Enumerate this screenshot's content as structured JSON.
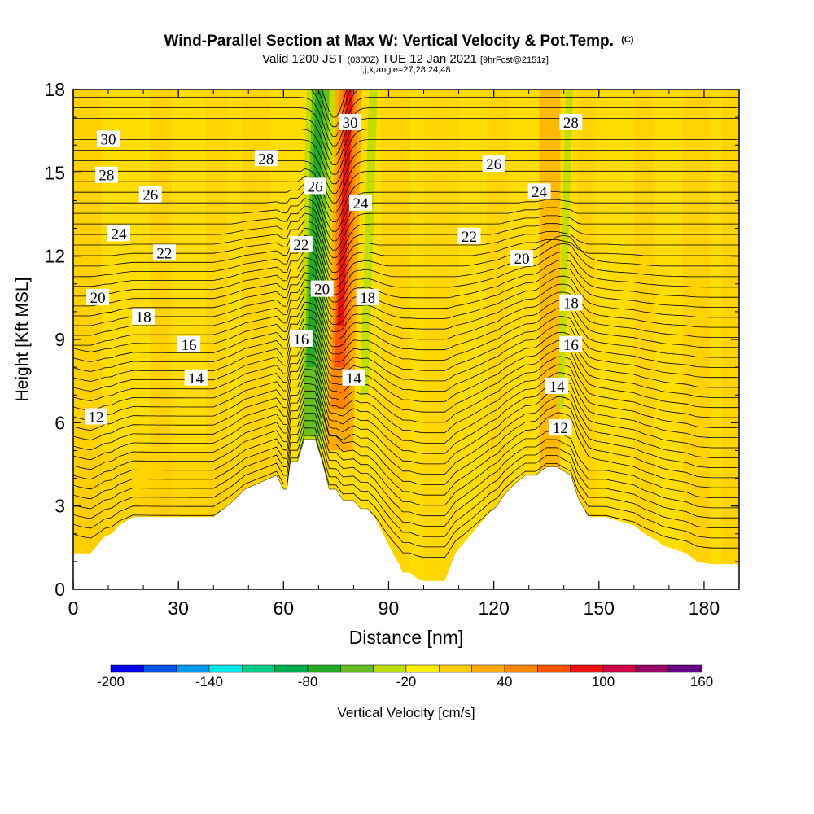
{
  "title": {
    "main": "Wind-Parallel Section at Max W: Vertical Velocity & Pot.Temp.",
    "copyright": "(C)",
    "valid_prefix": "Valid 1200 JST",
    "valid_zulu": "(0300Z)",
    "valid_date": "TUE 12 Jan 2021",
    "forecast": "[9hrFcst@2151z]",
    "indices": "i,j,k,angle=27,28,24,48"
  },
  "chart_data": {
    "type": "heatmap",
    "xlabel": "Distance [nm]",
    "ylabel": "Height [Kft MSL]",
    "xlim": [
      0,
      190
    ],
    "ylim": [
      0,
      18
    ],
    "xticks": [
      0,
      30,
      60,
      90,
      120,
      150,
      180
    ],
    "yticks": [
      0,
      3,
      6,
      9,
      12,
      15,
      18
    ],
    "grid": false,
    "shaded_field": "Vertical Velocity",
    "colorbar": {
      "label": "Vertical Velocity [cm/s]",
      "placement": "bottom",
      "ticks": [
        -200,
        -140,
        -80,
        -20,
        40,
        100,
        160
      ],
      "levels": [
        -200,
        -180,
        -160,
        -140,
        -120,
        -100,
        -80,
        -60,
        -40,
        -20,
        0,
        20,
        40,
        60,
        80,
        100,
        120,
        140,
        160
      ],
      "colors": [
        "#0000ee",
        "#0055ee",
        "#0099ee",
        "#00e5e5",
        "#00cc88",
        "#00b050",
        "#22aa22",
        "#66bb22",
        "#bbdd00",
        "#ffee00",
        "#ffcc00",
        "#ffaa00",
        "#ff8800",
        "#ff5500",
        "#ee1111",
        "#cc0044",
        "#990066",
        "#660088"
      ]
    },
    "contour_field": "Potential Temperature",
    "contour_labels": [
      {
        "text": "30",
        "x": 10,
        "y": 16.2
      },
      {
        "text": "28",
        "x": 9.5,
        "y": 14.9
      },
      {
        "text": "26",
        "x": 22,
        "y": 14.2
      },
      {
        "text": "24",
        "x": 13,
        "y": 12.8
      },
      {
        "text": "22",
        "x": 26,
        "y": 12.1
      },
      {
        "text": "20",
        "x": 7,
        "y": 10.5
      },
      {
        "text": "18",
        "x": 20,
        "y": 9.8
      },
      {
        "text": "16",
        "x": 33,
        "y": 8.8
      },
      {
        "text": "14",
        "x": 35,
        "y": 7.6
      },
      {
        "text": "12",
        "x": 6.5,
        "y": 6.2
      },
      {
        "text": "28",
        "x": 55,
        "y": 15.5
      },
      {
        "text": "26",
        "x": 69,
        "y": 14.5
      },
      {
        "text": "22",
        "x": 65,
        "y": 12.4
      },
      {
        "text": "20",
        "x": 71,
        "y": 10.8
      },
      {
        "text": "16",
        "x": 65,
        "y": 9.0
      },
      {
        "text": "30",
        "x": 79,
        "y": 16.8
      },
      {
        "text": "24",
        "x": 82,
        "y": 13.9
      },
      {
        "text": "18",
        "x": 84,
        "y": 10.5
      },
      {
        "text": "14",
        "x": 80,
        "y": 7.6
      },
      {
        "text": "26",
        "x": 120,
        "y": 15.3
      },
      {
        "text": "22",
        "x": 113,
        "y": 12.7
      },
      {
        "text": "24",
        "x": 133,
        "y": 14.3
      },
      {
        "text": "20",
        "x": 128,
        "y": 11.9
      },
      {
        "text": "28",
        "x": 142,
        "y": 16.8
      },
      {
        "text": "18",
        "x": 142,
        "y": 10.3
      },
      {
        "text": "16",
        "x": 142,
        "y": 8.8
      },
      {
        "text": "14",
        "x": 138,
        "y": 7.3
      },
      {
        "text": "12",
        "x": 139,
        "y": 5.8
      }
    ],
    "terrain_height": {
      "x": [
        0,
        5,
        7,
        9,
        11,
        13,
        17,
        20,
        40,
        45,
        49,
        58,
        60,
        61,
        62,
        64,
        66,
        69,
        71,
        73,
        75,
        77,
        79,
        80,
        82,
        84,
        86,
        88,
        90,
        92,
        93,
        94,
        96,
        98,
        100,
        103,
        106,
        109,
        111,
        113,
        115,
        117,
        119,
        121,
        123,
        126,
        129,
        132,
        135,
        136,
        138,
        142,
        144,
        147,
        150,
        152,
        160,
        163,
        166,
        168,
        170,
        175,
        178,
        182,
        185,
        190
      ],
      "y": [
        1.3,
        1.3,
        1.6,
        1.9,
        2.0,
        2.3,
        2.6,
        2.6,
        2.6,
        3.1,
        3.6,
        4.1,
        3.6,
        3.6,
        4.6,
        4.6,
        5.4,
        5.4,
        4.6,
        3.6,
        3.6,
        3.2,
        3.2,
        3.2,
        2.9,
        2.9,
        2.6,
        2.1,
        1.6,
        1.1,
        0.9,
        0.6,
        0.6,
        0.4,
        0.3,
        0.3,
        0.3,
        1.3,
        1.6,
        1.9,
        2.2,
        2.5,
        2.8,
        3.0,
        3.4,
        3.8,
        4.1,
        4.1,
        4.4,
        4.4,
        4.4,
        4.1,
        3.3,
        2.6,
        2.6,
        2.6,
        2.3,
        2.0,
        1.8,
        1.6,
        1.5,
        1.3,
        1.0,
        0.9,
        0.9,
        0.9
      ]
    },
    "updraft_core": {
      "x_center_nm": 78,
      "max_cm_s": 100
    },
    "downdraft_core": {
      "x_center_nm": 70,
      "min_cm_s": -80
    }
  }
}
